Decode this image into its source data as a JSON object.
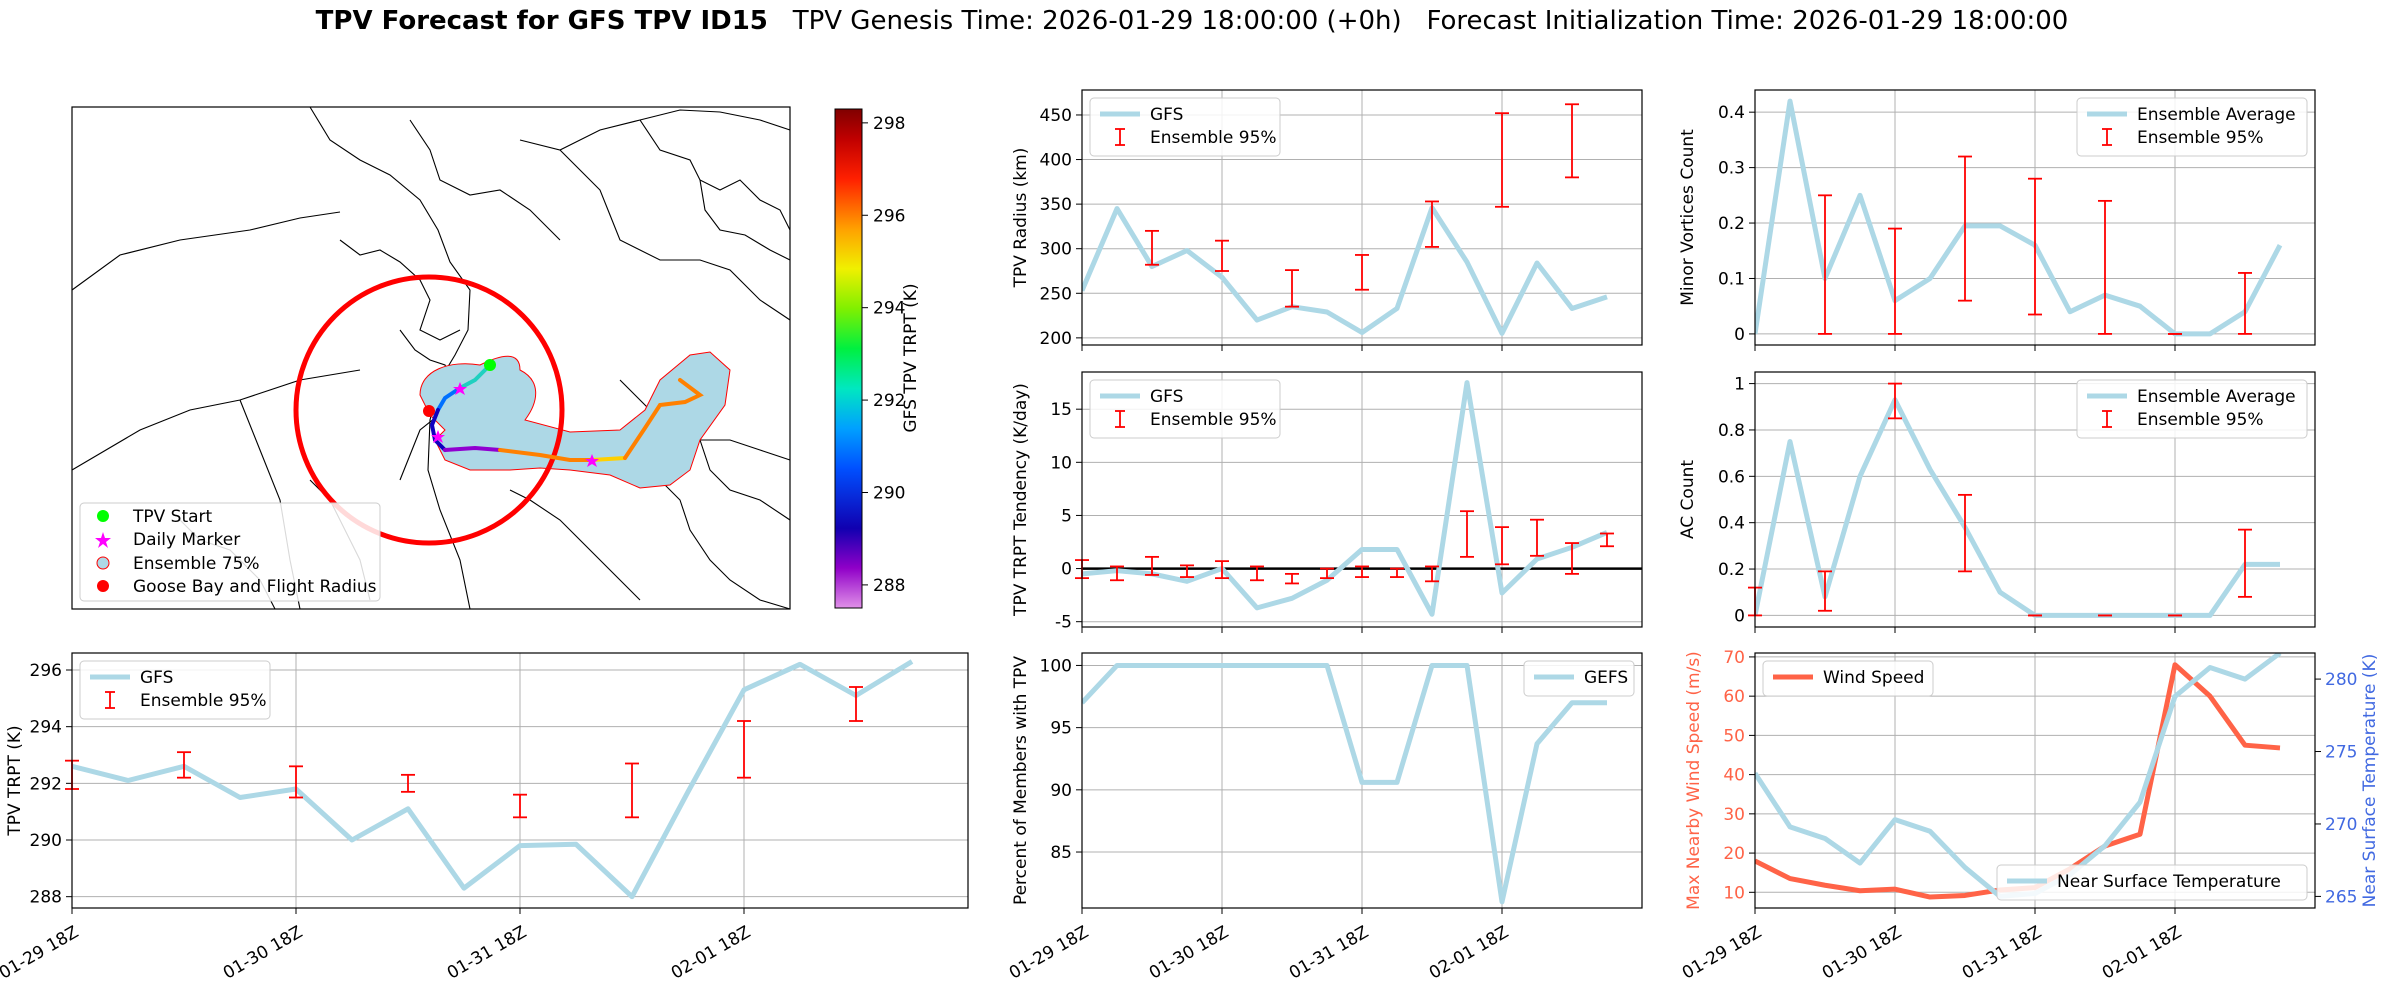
{
  "figure": {
    "title_bold": "TPV Forecast for GFS TPV ID15",
    "title_genesis": "TPV Genesis Time: 2026-01-29 18:00:00 (+0h)",
    "title_init": "Forecast Initialization Time: 2026-01-29 18:00:00"
  },
  "colors": {
    "gfs_line": "#add8e6",
    "ensemble_bar": "#ff0000",
    "wind_line": "#ff6347",
    "temp_axis": "#4169e1",
    "map_fill": "#add8e6",
    "radius_circle": "#ff0000",
    "tpv_start": "#00ff00",
    "daily_marker": "#ff00ff",
    "goose_bay": "#ff0000"
  },
  "map": {
    "legend": [
      "TPV Start",
      "Daily Marker",
      "Ensemble 75%",
      "Goose Bay and Flight Radius"
    ],
    "colorbar": {
      "label": "GFS TPV TRPT (K)",
      "ticks": [
        288,
        290,
        292,
        294,
        296,
        298
      ],
      "range": [
        287.5,
        298.3
      ],
      "colormap": "gist_ncar-like (violet to dark red)"
    }
  },
  "x_tick_labels": [
    "01-29 18Z",
    "01-30 18Z",
    "01-31 18Z",
    "02-01 18Z"
  ],
  "chart_data": [
    {
      "id": "radius",
      "type": "line",
      "ylabel": "TPV Radius (km)",
      "ylim": [
        192,
        478
      ],
      "yticks": [
        200,
        250,
        300,
        350,
        400,
        450
      ],
      "legend": [
        "GFS",
        "Ensemble 95%"
      ],
      "legend_position": "upper-left",
      "x": [
        "01-29 18Z",
        "01-30 00Z",
        "01-30 06Z",
        "01-30 12Z",
        "01-30 18Z",
        "01-31 00Z",
        "01-31 06Z",
        "01-31 12Z",
        "01-31 18Z",
        "02-01 00Z",
        "02-01 06Z",
        "02-01 12Z",
        "02-01 18Z",
        "02-02 00Z",
        "02-02 06Z",
        "02-02 12Z"
      ],
      "values": [
        253,
        345,
        280,
        298,
        268,
        220,
        235,
        229,
        206,
        233,
        346,
        285,
        205,
        284,
        233,
        246
      ],
      "error_bars": [
        {
          "x": "01-30 06Z",
          "low": 282,
          "high": 320
        },
        {
          "x": "01-30 18Z",
          "low": 275,
          "high": 309
        },
        {
          "x": "01-31 06Z",
          "low": 235,
          "high": 276
        },
        {
          "x": "01-31 18Z",
          "low": 254,
          "high": 293
        },
        {
          "x": "02-01 06Z",
          "low": 302,
          "high": 353
        },
        {
          "x": "02-01 18Z",
          "low": 347,
          "high": 452
        },
        {
          "x": "02-02 06Z",
          "low": 380,
          "high": 462
        }
      ]
    },
    {
      "id": "tendency",
      "type": "line",
      "ylabel": "TPV TRPT Tendency (K/day)",
      "ylim": [
        -5.5,
        18.5
      ],
      "yticks": [
        -5,
        0,
        5,
        10,
        15
      ],
      "zero_line": true,
      "legend": [
        "GFS",
        "Ensemble 95%"
      ],
      "legend_position": "upper-left",
      "x": [
        "01-29 18Z",
        "01-30 00Z",
        "01-30 06Z",
        "01-30 12Z",
        "01-30 18Z",
        "01-31 00Z",
        "01-31 06Z",
        "01-31 12Z",
        "01-31 18Z",
        "02-01 00Z",
        "02-01 06Z",
        "02-01 12Z",
        "02-01 18Z",
        "02-02 00Z",
        "02-02 06Z",
        "02-02 12Z"
      ],
      "values": [
        -0.5,
        -0.2,
        -0.5,
        -1.2,
        0,
        -3.7,
        -2.8,
        -1.1,
        1.8,
        1.8,
        -4.3,
        17.5,
        -2.3,
        0.9,
        2.0,
        3.4
      ],
      "error_bars": [
        {
          "x": "01-29 18Z",
          "low": -0.9,
          "high": 0.8
        },
        {
          "x": "01-30 00Z",
          "low": -1.1,
          "high": 0.2
        },
        {
          "x": "01-30 06Z",
          "low": -0.6,
          "high": 1.1
        },
        {
          "x": "01-30 12Z",
          "low": -0.8,
          "high": 0.3
        },
        {
          "x": "01-30 18Z",
          "low": -0.9,
          "high": 0.7
        },
        {
          "x": "01-31 00Z",
          "low": -1.1,
          "high": 0.2
        },
        {
          "x": "01-31 06Z",
          "low": -1.4,
          "high": -0.5
        },
        {
          "x": "01-31 12Z",
          "low": -0.9,
          "high": 0.0
        },
        {
          "x": "01-31 18Z",
          "low": -0.8,
          "high": 0.2
        },
        {
          "x": "02-01 00Z",
          "low": -0.8,
          "high": 0.0
        },
        {
          "x": "02-01 06Z",
          "low": -1.2,
          "high": 0.2
        },
        {
          "x": "02-01 12Z",
          "low": 1.1,
          "high": 5.4
        },
        {
          "x": "02-01 18Z",
          "low": 0.4,
          "high": 3.9
        },
        {
          "x": "02-02 00Z",
          "low": 1.2,
          "high": 4.6
        },
        {
          "x": "02-02 06Z",
          "low": -0.5,
          "high": 2.4
        },
        {
          "x": "02-02 12Z",
          "low": 2.1,
          "high": 3.3
        }
      ]
    },
    {
      "id": "minor",
      "type": "line",
      "ylabel": "Minor Vortices Count",
      "ylim": [
        -0.02,
        0.44
      ],
      "yticks": [
        0.0,
        0.1,
        0.2,
        0.3,
        0.4
      ],
      "legend": [
        "Ensemble Average",
        "Ensemble 95%"
      ],
      "legend_position": "upper-right",
      "x": [
        "01-29 18Z",
        "01-30 00Z",
        "01-30 06Z",
        "01-30 12Z",
        "01-30 18Z",
        "01-31 00Z",
        "01-31 06Z",
        "01-31 12Z",
        "01-31 18Z",
        "02-01 00Z",
        "02-01 06Z",
        "02-01 12Z",
        "02-01 18Z",
        "02-02 00Z",
        "02-02 06Z",
        "02-02 12Z"
      ],
      "values": [
        0.0,
        0.42,
        0.1,
        0.25,
        0.06,
        0.1,
        0.195,
        0.195,
        0.16,
        0.04,
        0.07,
        0.05,
        0.0,
        0.0,
        0.04,
        0.16
      ],
      "error_bars": [
        {
          "x": "01-30 06Z",
          "low": 0.0,
          "high": 0.25
        },
        {
          "x": "01-30 18Z",
          "low": 0.0,
          "high": 0.19
        },
        {
          "x": "01-31 06Z",
          "low": 0.06,
          "high": 0.32
        },
        {
          "x": "01-31 18Z",
          "low": 0.035,
          "high": 0.28
        },
        {
          "x": "02-01 06Z",
          "low": 0.0,
          "high": 0.24
        },
        {
          "x": "02-01 18Z",
          "low": 0.0,
          "high": 0.0
        },
        {
          "x": "02-02 06Z",
          "low": 0.0,
          "high": 0.11
        }
      ]
    },
    {
      "id": "ac",
      "type": "line",
      "ylabel": "AC Count",
      "ylim": [
        -0.05,
        1.05
      ],
      "yticks": [
        0.0,
        0.2,
        0.4,
        0.6,
        0.8,
        1.0
      ],
      "legend": [
        "Ensemble Average",
        "Ensemble 95%"
      ],
      "legend_position": "upper-right",
      "x": [
        "01-29 18Z",
        "01-30 00Z",
        "01-30 06Z",
        "01-30 12Z",
        "01-30 18Z",
        "01-31 00Z",
        "01-31 06Z",
        "01-31 12Z",
        "01-31 18Z",
        "02-01 00Z",
        "02-01 06Z",
        "02-01 12Z",
        "02-01 18Z",
        "02-02 00Z",
        "02-02 06Z",
        "02-02 12Z"
      ],
      "values": [
        0.0,
        0.75,
        0.08,
        0.6,
        0.93,
        0.63,
        0.38,
        0.1,
        0.0,
        0.0,
        0.0,
        0.0,
        0.0,
        0.0,
        0.22,
        0.22
      ],
      "error_bars": [
        {
          "x": "01-29 18Z",
          "low": 0.0,
          "high": 0.12
        },
        {
          "x": "01-30 06Z",
          "low": 0.02,
          "high": 0.19
        },
        {
          "x": "01-30 18Z",
          "low": 0.85,
          "high": 1.0
        },
        {
          "x": "01-31 06Z",
          "low": 0.19,
          "high": 0.52
        },
        {
          "x": "01-31 18Z",
          "low": 0.0,
          "high": 0.0
        },
        {
          "x": "02-01 06Z",
          "low": 0.0,
          "high": 0.0
        },
        {
          "x": "02-01 18Z",
          "low": 0.0,
          "high": 0.0
        },
        {
          "x": "02-02 06Z",
          "low": 0.08,
          "high": 0.37
        }
      ]
    },
    {
      "id": "trpt",
      "type": "line",
      "ylabel": "TPV TRPT (K)",
      "ylim": [
        287.6,
        296.6
      ],
      "yticks": [
        288,
        290,
        292,
        294,
        296
      ],
      "legend": [
        "GFS",
        "Ensemble 95%"
      ],
      "legend_position": "upper-left",
      "x": [
        "01-29 18Z",
        "01-30 00Z",
        "01-30 06Z",
        "01-30 12Z",
        "01-30 18Z",
        "01-31 00Z",
        "01-31 06Z",
        "01-31 12Z",
        "01-31 18Z",
        "02-01 00Z",
        "02-01 06Z",
        "02-01 12Z",
        "02-01 18Z",
        "02-02 00Z",
        "02-02 06Z",
        "02-02 12Z"
      ],
      "values": [
        292.6,
        292.1,
        292.6,
        291.5,
        291.8,
        290.0,
        291.1,
        288.3,
        289.8,
        289.85,
        288.0,
        291.7,
        295.3,
        296.2,
        295.1,
        296.3
      ],
      "error_bars": [
        {
          "x": "01-29 18Z",
          "low": 291.8,
          "high": 292.8
        },
        {
          "x": "01-30 06Z",
          "low": 292.2,
          "high": 293.1
        },
        {
          "x": "01-30 18Z",
          "low": 291.5,
          "high": 292.6
        },
        {
          "x": "01-31 06Z",
          "low": 291.7,
          "high": 292.3
        },
        {
          "x": "01-31 18Z",
          "low": 290.8,
          "high": 291.6
        },
        {
          "x": "02-01 06Z",
          "low": 290.8,
          "high": 292.7
        },
        {
          "x": "02-01 18Z",
          "low": 292.2,
          "high": 294.2
        },
        {
          "x": "02-02 06Z",
          "low": 294.2,
          "high": 295.4
        }
      ]
    },
    {
      "id": "members",
      "type": "line",
      "ylabel": "Percent of Members with TPV",
      "ylim": [
        80.5,
        101
      ],
      "yticks": [
        85,
        90,
        95,
        100
      ],
      "legend": [
        "GEFS"
      ],
      "legend_position": "upper-right",
      "x": [
        "01-29 18Z",
        "01-30 00Z",
        "01-30 06Z",
        "01-30 12Z",
        "01-30 18Z",
        "01-31 00Z",
        "01-31 06Z",
        "01-31 12Z",
        "01-31 18Z",
        "02-01 00Z",
        "02-01 06Z",
        "02-01 12Z",
        "02-01 18Z",
        "02-02 00Z",
        "02-02 06Z",
        "02-02 12Z"
      ],
      "values": [
        97,
        100,
        100,
        100,
        100,
        100,
        100,
        100,
        90.6,
        90.6,
        100,
        100,
        81,
        93.7,
        97,
        97
      ]
    },
    {
      "id": "wind_temp",
      "type": "line",
      "ylabel": "Max Nearby Wind Speed (m/s)",
      "ylabel_right": "Near Surface Temperature (K)",
      "ylim": [
        6,
        71
      ],
      "yticks": [
        10,
        20,
        30,
        40,
        50,
        60,
        70
      ],
      "ylim_right": [
        264.2,
        281.8
      ],
      "yticks_right": [
        265,
        270,
        275,
        280
      ],
      "legend": [
        "Wind Speed"
      ],
      "legend_position": "upper-left",
      "legend_right": [
        "Near Surface Temperature"
      ],
      "legend_right_position": "lower-right",
      "x": [
        "01-29 18Z",
        "01-30 00Z",
        "01-30 06Z",
        "01-30 12Z",
        "01-30 18Z",
        "01-31 00Z",
        "01-31 06Z",
        "01-31 12Z",
        "01-31 18Z",
        "02-01 00Z",
        "02-01 06Z",
        "02-01 12Z",
        "02-01 18Z",
        "02-02 00Z",
        "02-02 06Z",
        "02-02 12Z"
      ],
      "series": [
        {
          "name": "Wind Speed",
          "axis": "left",
          "values": [
            18,
            13.5,
            11.8,
            10.4,
            10.8,
            8.8,
            9.2,
            10.6,
            11.2,
            16,
            21.8,
            24.8,
            68,
            60,
            47.5,
            46.8
          ]
        },
        {
          "name": "Near Surface Temperature",
          "axis": "right",
          "values": [
            273.5,
            269.8,
            269.0,
            267.3,
            270.3,
            269.5,
            267.0,
            265.0,
            265.2,
            266.5,
            268.5,
            271.5,
            278.8,
            280.8,
            280.0,
            281.8
          ]
        }
      ]
    }
  ]
}
